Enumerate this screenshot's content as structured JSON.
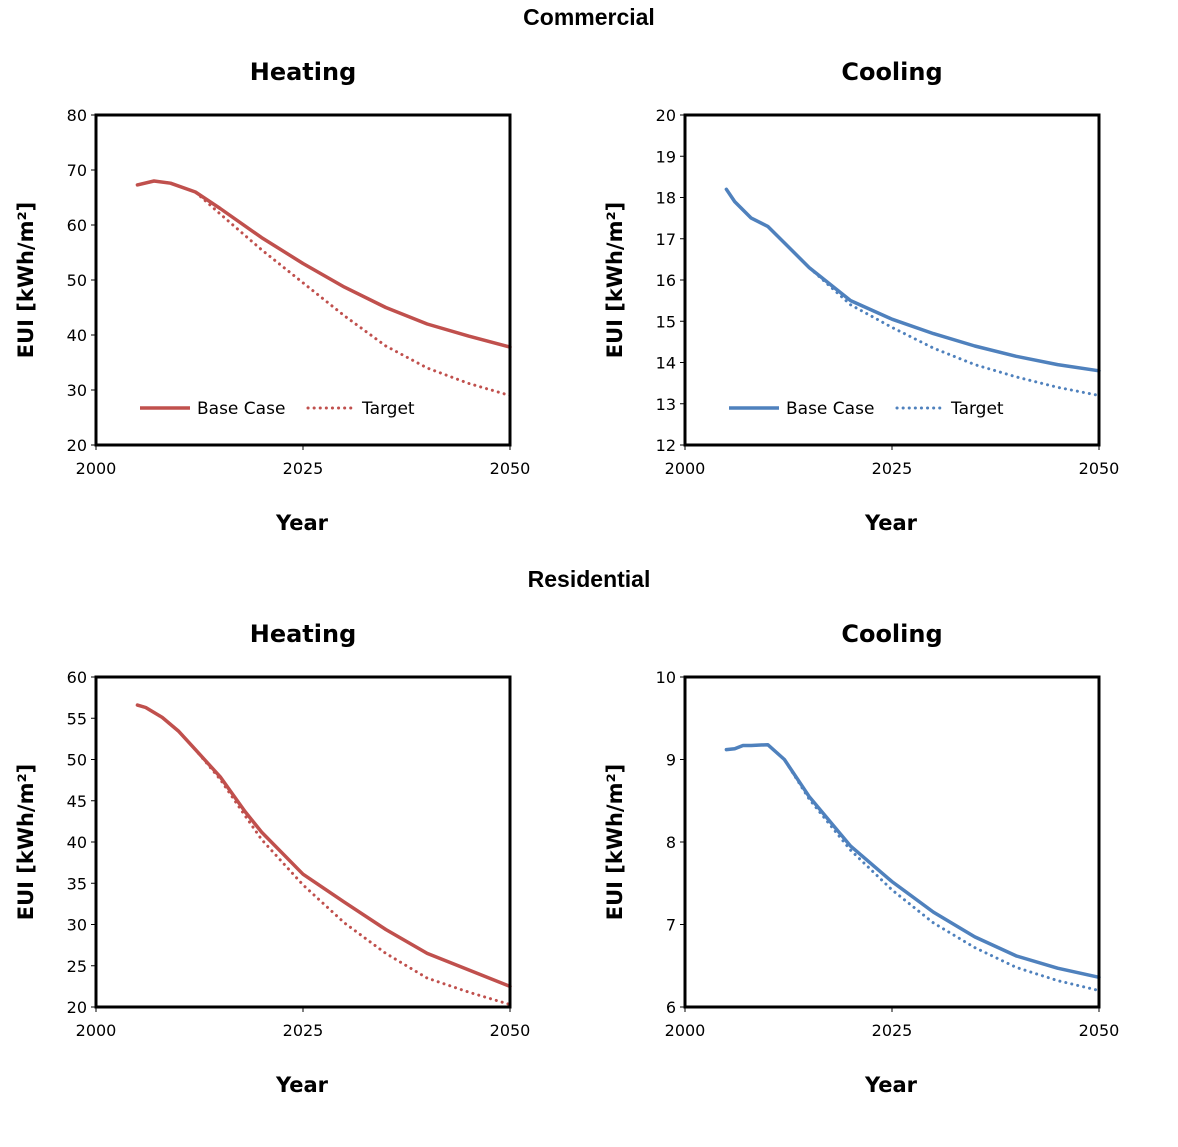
{
  "sections": [
    {
      "title": "Commercial"
    },
    {
      "title": "Residential"
    }
  ],
  "legend": {
    "base_label": "Base Case",
    "target_label": "Target"
  },
  "colors": {
    "heating": "#c0504d",
    "cooling": "#4f81bd",
    "frame": "#000000"
  },
  "chart_data": [
    {
      "type": "line",
      "group": "Commercial",
      "title": "Heating",
      "xlabel": "Year",
      "ylabel": "EUI [kWh/m²]",
      "xlim": [
        2000,
        2050
      ],
      "ylim": [
        20,
        80
      ],
      "xticks": [
        2000,
        2025,
        2050
      ],
      "yticks": [
        20,
        30,
        40,
        50,
        60,
        70,
        80
      ],
      "legend": "bottom-left",
      "color": "#c0504d",
      "series": [
        {
          "name": "Base Case",
          "style": "solid",
          "x": [
            2005,
            2007,
            2009,
            2012,
            2015,
            2020,
            2025,
            2030,
            2035,
            2040,
            2045,
            2050
          ],
          "y": [
            67.3,
            68,
            67.6,
            66,
            63,
            57.7,
            53,
            48.7,
            45,
            42,
            39.8,
            37.8
          ]
        },
        {
          "name": "Target",
          "style": "dotted",
          "x": [
            2005,
            2007,
            2009,
            2012,
            2015,
            2020,
            2025,
            2030,
            2035,
            2040,
            2045,
            2050
          ],
          "y": [
            67.3,
            68,
            67.6,
            66,
            62,
            55.5,
            49.5,
            43.5,
            38,
            34,
            31.2,
            29
          ]
        }
      ]
    },
    {
      "type": "line",
      "group": "Commercial",
      "title": "Cooling",
      "xlabel": "Year",
      "ylabel": "EUI [kWh/m²]",
      "xlim": [
        2000,
        2050
      ],
      "ylim": [
        12,
        20
      ],
      "xticks": [
        2000,
        2025,
        2050
      ],
      "yticks": [
        12,
        13,
        14,
        15,
        16,
        17,
        18,
        19,
        20
      ],
      "legend": "bottom-left",
      "color": "#4f81bd",
      "series": [
        {
          "name": "Base Case",
          "style": "solid",
          "x": [
            2005,
            2006,
            2008,
            2010,
            2012,
            2015,
            2020,
            2025,
            2030,
            2035,
            2040,
            2045,
            2050
          ],
          "y": [
            18.2,
            17.9,
            17.5,
            17.3,
            16.9,
            16.3,
            15.5,
            15.05,
            14.7,
            14.4,
            14.15,
            13.95,
            13.8
          ]
        },
        {
          "name": "Target",
          "style": "dotted",
          "x": [
            2005,
            2006,
            2008,
            2010,
            2012,
            2015,
            2020,
            2025,
            2030,
            2035,
            2040,
            2045,
            2050
          ],
          "y": [
            18.2,
            17.9,
            17.5,
            17.3,
            16.9,
            16.3,
            15.4,
            14.85,
            14.35,
            13.95,
            13.65,
            13.4,
            13.2
          ]
        }
      ]
    },
    {
      "type": "line",
      "group": "Residential",
      "title": "Heating",
      "xlabel": "Year",
      "ylabel": "EUI [kWh/m²]",
      "xlim": [
        2000,
        2050
      ],
      "ylim": [
        20,
        60
      ],
      "xticks": [
        2000,
        2025,
        2050
      ],
      "yticks": [
        20,
        25,
        30,
        35,
        40,
        45,
        50,
        55,
        60
      ],
      "legend": "none",
      "color": "#c0504d",
      "series": [
        {
          "name": "Base Case",
          "style": "solid",
          "x": [
            2005,
            2006,
            2008,
            2010,
            2012,
            2015,
            2018,
            2020,
            2025,
            2030,
            2035,
            2040,
            2045,
            2050
          ],
          "y": [
            56.6,
            56.3,
            55.1,
            53.4,
            51.2,
            47.9,
            43.7,
            41.2,
            36.1,
            32.7,
            29.4,
            26.5,
            24.5,
            22.5
          ]
        },
        {
          "name": "Target",
          "style": "dotted",
          "x": [
            2005,
            2006,
            2008,
            2010,
            2012,
            2015,
            2018,
            2020,
            2025,
            2030,
            2035,
            2040,
            2045,
            2050
          ],
          "y": [
            56.6,
            56.3,
            55.1,
            53.4,
            51.2,
            47.6,
            43.2,
            40.3,
            34.8,
            30.2,
            26.5,
            23.5,
            21.8,
            20.3
          ]
        }
      ]
    },
    {
      "type": "line",
      "group": "Residential",
      "title": "Cooling",
      "xlabel": "Year",
      "ylabel": "EUI [kWh/m²]",
      "xlim": [
        2000,
        2050
      ],
      "ylim": [
        6,
        10
      ],
      "xticks": [
        2000,
        2025,
        2050
      ],
      "yticks": [
        6,
        7,
        8,
        9,
        10
      ],
      "legend": "none",
      "color": "#4f81bd",
      "series": [
        {
          "name": "Base Case",
          "style": "solid",
          "x": [
            2005,
            2006,
            2007,
            2008,
            2010,
            2012,
            2015,
            2020,
            2025,
            2030,
            2035,
            2040,
            2045,
            2050
          ],
          "y": [
            9.12,
            9.13,
            9.17,
            9.17,
            9.18,
            9.0,
            8.55,
            7.95,
            7.52,
            7.15,
            6.85,
            6.62,
            6.47,
            6.36
          ]
        },
        {
          "name": "Target",
          "style": "dotted",
          "x": [
            2005,
            2006,
            2007,
            2008,
            2010,
            2012,
            2015,
            2020,
            2025,
            2030,
            2035,
            2040,
            2045,
            2050
          ],
          "y": [
            9.12,
            9.13,
            9.17,
            9.17,
            9.18,
            9.0,
            8.52,
            7.9,
            7.42,
            7.02,
            6.72,
            6.48,
            6.32,
            6.2
          ]
        }
      ]
    }
  ]
}
